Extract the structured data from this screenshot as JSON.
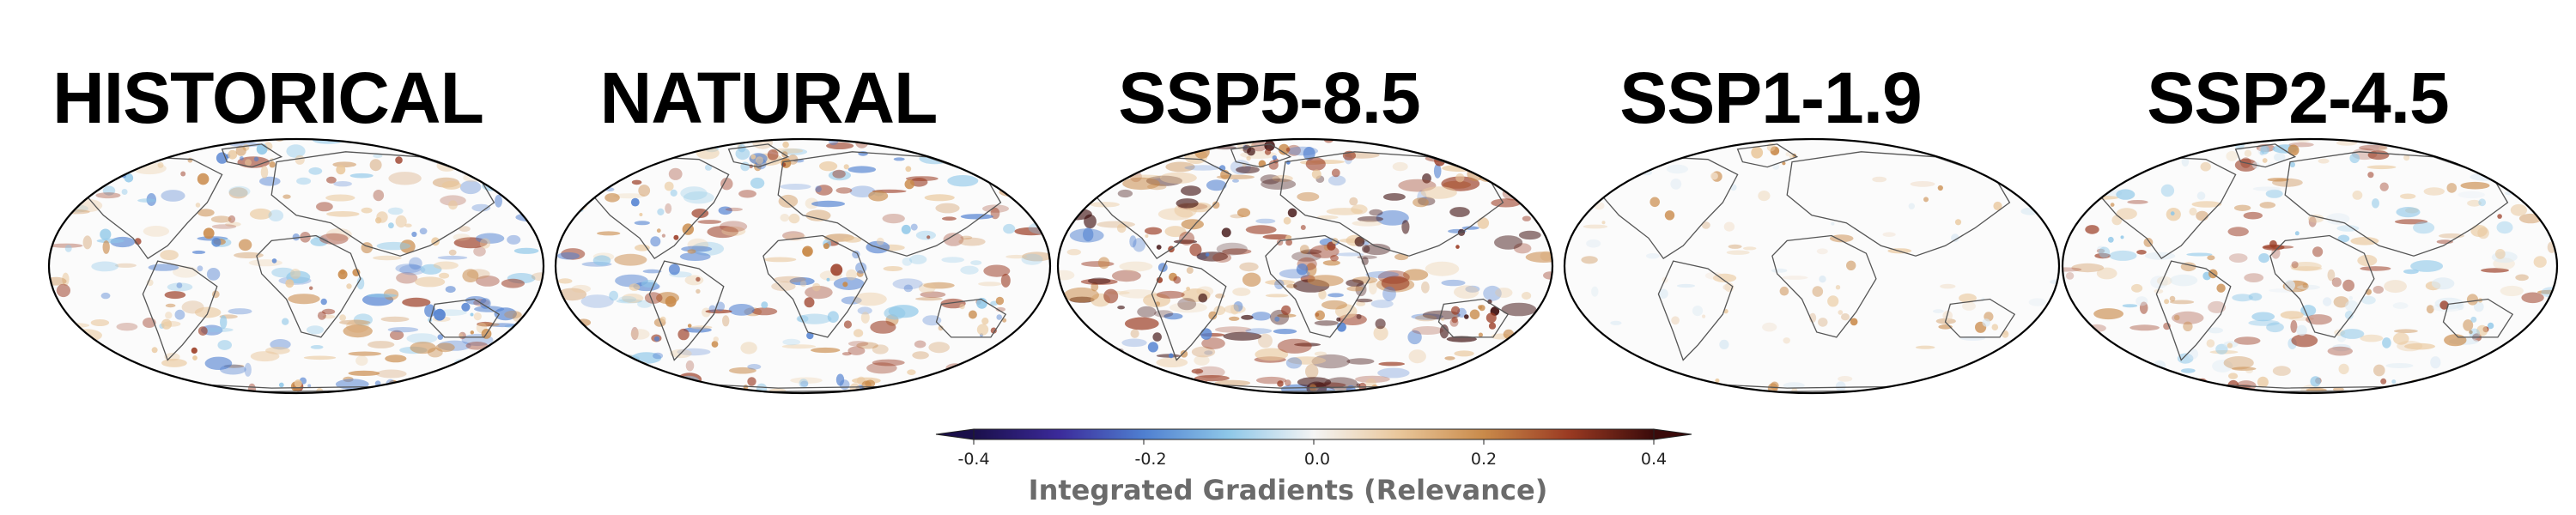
{
  "panels": [
    {
      "title": "HISTORICAL",
      "pattern": "mixed"
    },
    {
      "title": "NATURAL",
      "pattern": "mixed-blue"
    },
    {
      "title": "SSP5-8.5",
      "pattern": "strong"
    },
    {
      "title": "SSP1-1.9",
      "pattern": "faint"
    },
    {
      "title": "SSP2-4.5",
      "pattern": "moderate"
    }
  ],
  "colorbar": {
    "label": "Integrated Gradients (Relevance)",
    "ticks": [
      "-0.4",
      "-0.2",
      "0.0",
      "0.2",
      "0.4"
    ],
    "colors": [
      "#1a0f4a",
      "#3b2a9a",
      "#4f7fd0",
      "#8ec7e8",
      "#f4f4f4",
      "#e9c79b",
      "#c98a4a",
      "#9a3a22",
      "#3a0a0a"
    ]
  }
}
